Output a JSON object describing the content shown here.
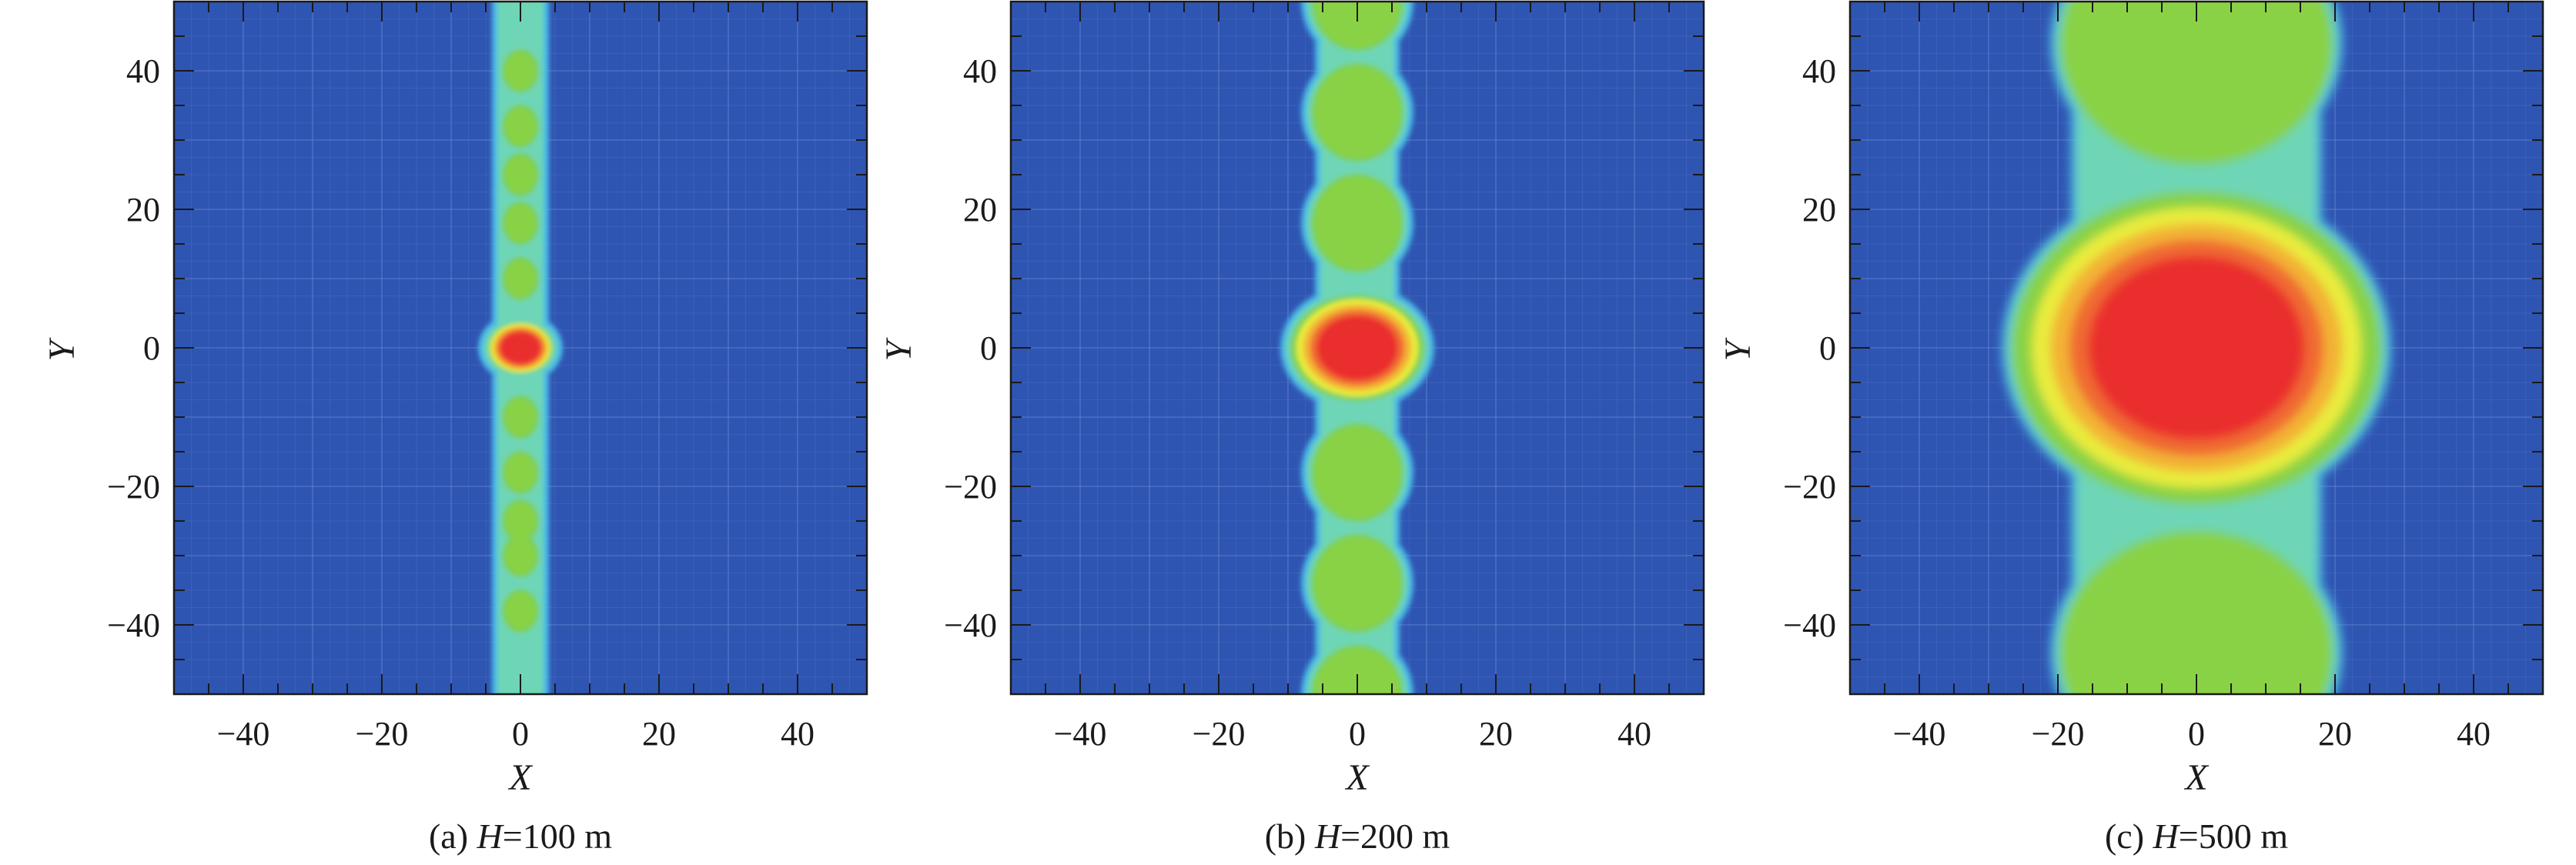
{
  "chart_data": [
    {
      "type": "heatmap",
      "panel_label": "(a)",
      "caption_var": "H",
      "caption_rest": "=100 m",
      "xlabel": "X",
      "ylabel": "Y",
      "xlim": [
        -50,
        50
      ],
      "ylim": [
        -50,
        50
      ],
      "xticks": [
        -40,
        -20,
        0,
        20,
        40
      ],
      "yticks": [
        -40,
        -20,
        0,
        20,
        40
      ],
      "xtick_labels": [
        "−40",
        "−20",
        "0",
        "20",
        "40"
      ],
      "ytick_labels": [
        "−40",
        "−20",
        "0",
        "20",
        "40"
      ],
      "grid": true,
      "peak_center": [
        0,
        0
      ],
      "central_spot": {
        "rx": 5,
        "ry": 4
      },
      "lobes_y": [
        -38,
        -30,
        -25,
        -18,
        -10,
        10,
        18,
        25,
        32,
        40
      ],
      "lobe_size": {
        "rx": 3,
        "ry": 3.5
      },
      "band_halfwidth": 3
    },
    {
      "type": "heatmap",
      "panel_label": "(b)",
      "caption_var": "H",
      "caption_rest": "=200 m",
      "xlabel": "X",
      "ylabel": "Y",
      "xlim": [
        -50,
        50
      ],
      "ylim": [
        -50,
        50
      ],
      "xticks": [
        -40,
        -20,
        0,
        20,
        40
      ],
      "yticks": [
        -40,
        -20,
        0,
        20,
        40
      ],
      "xtick_labels": [
        "−40",
        "−20",
        "0",
        "20",
        "40"
      ],
      "ytick_labels": [
        "−40",
        "−20",
        "0",
        "20",
        "40"
      ],
      "grid": true,
      "peak_center": [
        0,
        0
      ],
      "central_spot": {
        "rx": 10,
        "ry": 8
      },
      "lobes_y": [
        -50,
        -34,
        -18,
        18,
        34,
        50
      ],
      "lobe_size": {
        "rx": 7,
        "ry": 7.5
      },
      "band_halfwidth": 5
    },
    {
      "type": "heatmap",
      "panel_label": "(c)",
      "caption_var": "H",
      "caption_rest": "=500 m",
      "xlabel": "X",
      "ylabel": "Y",
      "xlim": [
        -50,
        50
      ],
      "ylim": [
        -50,
        50
      ],
      "xticks": [
        -40,
        -20,
        0,
        20,
        40
      ],
      "yticks": [
        -40,
        -20,
        0,
        20,
        40
      ],
      "xtick_labels": [
        "−40",
        "−20",
        "0",
        "20",
        "40"
      ],
      "ytick_labels": [
        "−40",
        "−20",
        "0",
        "20",
        "40"
      ],
      "grid": true,
      "peak_center": [
        0,
        0
      ],
      "central_spot": {
        "rx": 27,
        "ry": 23
      },
      "lobes_y": [
        -44,
        44
      ],
      "lobe_size": {
        "rx": 20,
        "ry": 18
      },
      "band_halfwidth": 17
    }
  ],
  "colors": {
    "background": "#2f55b2",
    "grid": "#6f8fd6",
    "level_1": "#49b8e6",
    "level_2": "#6ed6b6",
    "level_3": "#7cd05a",
    "level_4": "#8cd241",
    "level_5": "#e9ec3c",
    "level_6": "#f3b236",
    "level_7": "#f06a32",
    "level_8": "#ea2d2d",
    "axis": "#1a1a1a"
  }
}
